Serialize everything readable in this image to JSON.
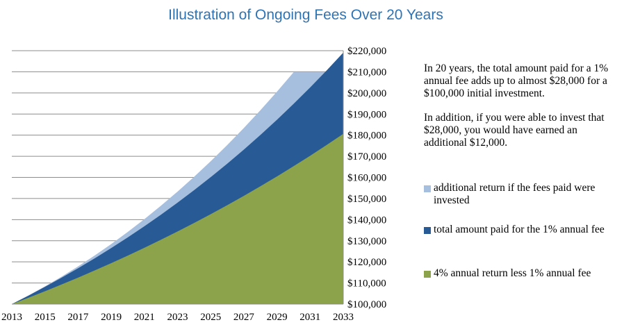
{
  "chart_data": {
    "type": "area",
    "title": "Illustration of Ongoing Fees Over 20 Years",
    "x": [
      2013,
      2014,
      2015,
      2016,
      2017,
      2018,
      2019,
      2020,
      2021,
      2022,
      2023,
      2024,
      2025,
      2026,
      2027,
      2028,
      2029,
      2030,
      2031,
      2032,
      2033
    ],
    "x_tick_labels": [
      "2013",
      "2015",
      "2017",
      "2019",
      "2021",
      "2023",
      "2025",
      "2027",
      "2029",
      "2031",
      "2033"
    ],
    "y_tick_labels": [
      "$100,000",
      "$110,000",
      "$120,000",
      "$130,000",
      "$140,000",
      "$150,000",
      "$160,000",
      "$170,000",
      "$180,000",
      "$190,000",
      "$200,000",
      "$210,000",
      "$220,000"
    ],
    "ylim": [
      100000,
      220000
    ],
    "y_axis_side": "right",
    "grid": "horizontal",
    "series": [
      {
        "name": "4% annual return less 1% annual fee",
        "color": "#8da34b",
        "values": [
          100000,
          103000,
          106090,
          109273,
          112551,
          115927,
          119405,
          122987,
          126677,
          130477,
          134392,
          138423,
          142576,
          146853,
          151259,
          155797,
          160471,
          165285,
          170243,
          175351,
          180611
        ]
      },
      {
        "name": "total amount paid for the 1% annual fee",
        "color": "#285b95",
        "values": [
          100000,
          104000,
          108160,
          112486,
          116986,
          121665,
          126532,
          131593,
          136857,
          142331,
          148024,
          153945,
          160103,
          166507,
          173168,
          180094,
          187298,
          194790,
          202582,
          210685,
          219112
        ]
      },
      {
        "name": "additional return if the fees paid were invested",
        "color": "#a7bfdf",
        "values": [
          100000,
          104060,
          108380,
          112980,
          117860,
          123010,
          128450,
          134190,
          140230,
          146590,
          153270,
          160280,
          167630,
          175320,
          183370,
          191790,
          200590,
          209770,
          209770,
          209770,
          219112
        ]
      }
    ]
  },
  "side_text": {
    "paragraph1": "In 20 years, the total amount paid for a 1% annual fee adds up to almost $28,000 for a $100,000 initial investment.",
    "paragraph2": "In addition, if you were able to invest that $28,000, you would have earned an additional $12,000."
  },
  "legend": [
    {
      "label": "additional return if the fees paid were invested",
      "color": "#a7bfdf"
    },
    {
      "label": "total amount paid for the 1% annual fee",
      "color": "#285b95"
    },
    {
      "label": "4% annual return less 1% annual fee",
      "color": "#8da34b"
    }
  ]
}
